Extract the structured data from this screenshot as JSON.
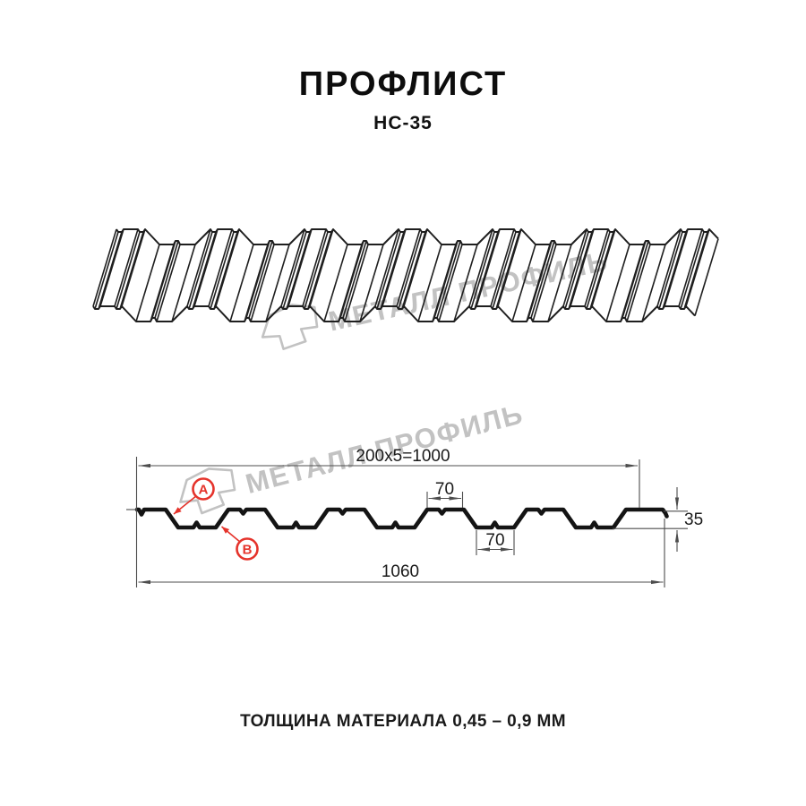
{
  "title": "ПРОФЛИСТ",
  "subtitle": "НС-35",
  "watermark": {
    "text": "МЕТАЛЛ ПРОФИЛЬ"
  },
  "dimensions": {
    "overall_top": "200x5=1000",
    "rib_top_width": "70",
    "rib_bottom_width": "70",
    "profile_height": "35",
    "overall_width": "1060",
    "marker_a": "A",
    "marker_b": "B"
  },
  "footer": "ТОЛЩИНА МАТЕРИАЛА 0,45 – 0,9 ММ",
  "colors": {
    "line": "#1f1f1f",
    "profile": "#141414",
    "dim_line": "#4d4d4d",
    "text": "#1a1a1a",
    "accent_red": "#e5332b",
    "watermark_gray": "#c2c2c2",
    "background": "#ffffff"
  }
}
